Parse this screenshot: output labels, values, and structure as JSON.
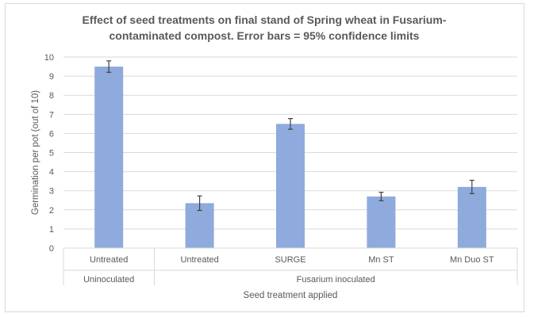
{
  "chart_data": {
    "type": "bar",
    "title_lines": [
      "Effect of seed treatments on final stand of Spring wheat in Fusarium-",
      "contaminated compost.  Error bars = 95% confidence limits"
    ],
    "categories": [
      "Untreated",
      "Untreated",
      "SURGE",
      "Mn ST",
      "Mn Duo ST"
    ],
    "groups": [
      {
        "label": "Uninoculated",
        "categories": [
          0
        ]
      },
      {
        "label": "Fusarium inoculated",
        "categories": [
          1,
          2,
          3,
          4
        ]
      }
    ],
    "values": [
      9.5,
      2.35,
      6.5,
      2.7,
      3.2
    ],
    "error": [
      0.3,
      0.38,
      0.28,
      0.22,
      0.35
    ],
    "ylim": [
      0,
      10
    ],
    "yticks": [
      0,
      1,
      2,
      3,
      4,
      5,
      6,
      7,
      8,
      9,
      10
    ],
    "ylabel": "Germination per pot (out of 10)",
    "xlabel": "Seed treatment applied",
    "grid": true,
    "colors": {
      "bar": "#8faadc",
      "grid": "#d9d9d9",
      "error": "#404040",
      "text": "#595959"
    }
  }
}
